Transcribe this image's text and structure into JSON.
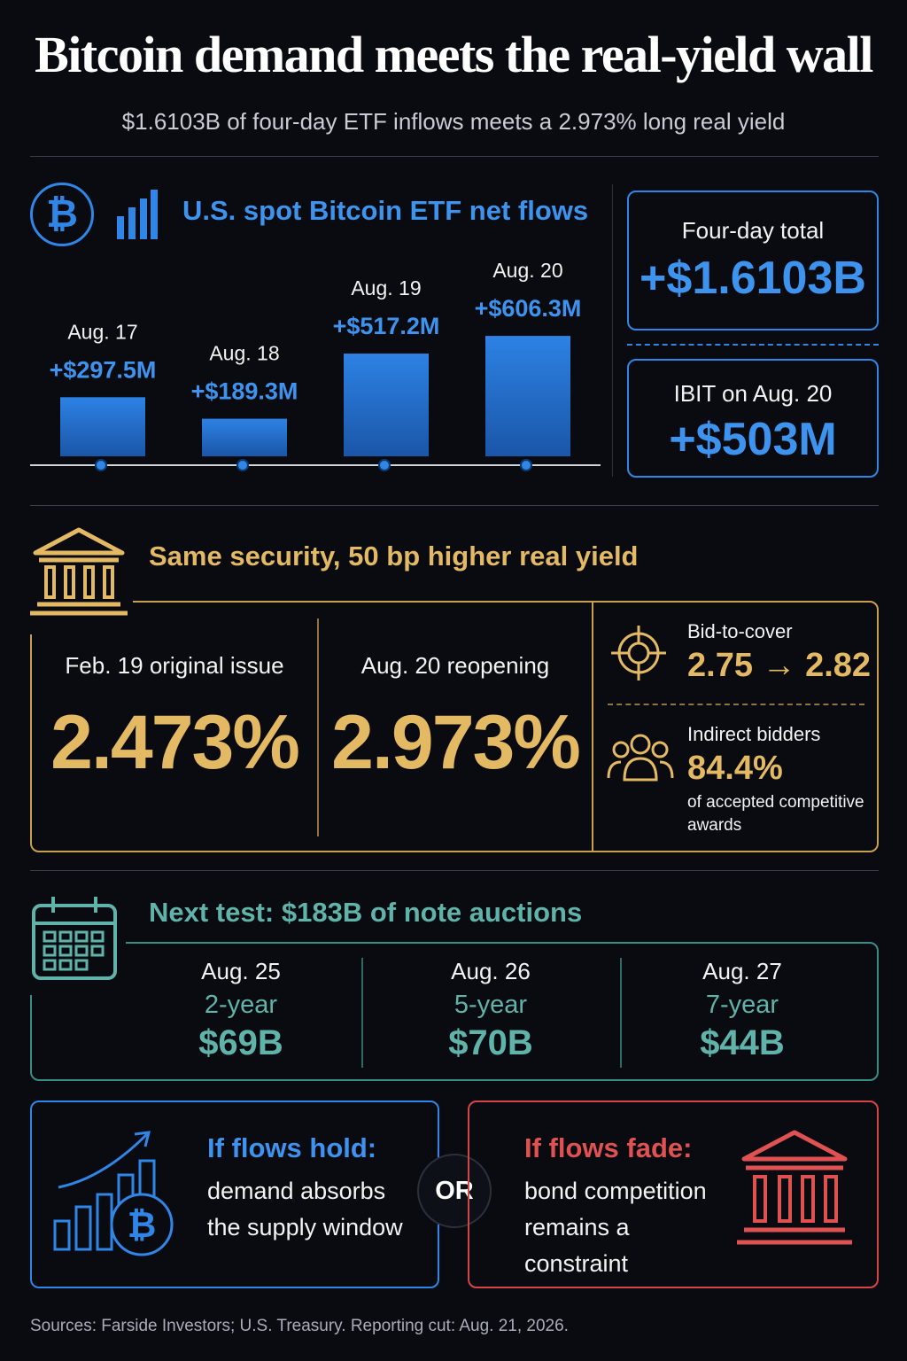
{
  "header": {
    "title": "Bitcoin demand meets the real-yield wall",
    "subtitle": "$1.6103B of four-day ETF inflows meets a 2.973% long real yield"
  },
  "etf": {
    "title": "U.S. spot Bitcoin ETF net flows",
    "icons": [
      "bitcoin-icon",
      "bar-chart-icon"
    ],
    "total_label": "Four-day total",
    "total_value": "+$1.6103B",
    "ibit_label": "IBIT on Aug. 20",
    "ibit_value": "+$503M"
  },
  "chart_data": {
    "type": "bar",
    "title": "U.S. spot Bitcoin ETF net flows",
    "categories": [
      "Aug. 17",
      "Aug. 18",
      "Aug. 19",
      "Aug. 20"
    ],
    "values": [
      297.5,
      189.3,
      517.2,
      606.3
    ],
    "value_labels": [
      "+$297.5M",
      "+$189.3M",
      "+$517.2M",
      "+$606.3M"
    ],
    "unit": "$M",
    "ylim": [
      0,
      650
    ],
    "grid": false,
    "color": "#2f86e6"
  },
  "yield": {
    "title": "Same security, 50 bp higher real yield",
    "original_label": "Feb. 19 original issue",
    "original_value": "2.473%",
    "reopen_label": "Aug. 20 reopening",
    "reopen_value": "2.973%",
    "btc_label": "Bid-to-cover",
    "btc_value": "2.75 → 2.82",
    "indirect_label": "Indirect bidders",
    "indirect_value": "84.4%",
    "indirect_note": "of accepted competitive awards",
    "icons": [
      "bank-icon",
      "target-icon",
      "people-icon"
    ]
  },
  "auctions": {
    "title": "Next test: $183B of note auctions",
    "icon": "calendar-icon",
    "items": [
      {
        "date": "Aug. 25",
        "tenor": "2-year",
        "size": "$69B"
      },
      {
        "date": "Aug. 26",
        "tenor": "5-year",
        "size": "$70B"
      },
      {
        "date": "Aug. 27",
        "tenor": "7-year",
        "size": "$44B"
      }
    ]
  },
  "scenarios": {
    "hold_title": "If flows hold:",
    "hold_text": "demand absorbs the supply window",
    "or_label": "OR",
    "fade_title": "If flows fade:",
    "fade_text": "bond competition remains a constraint"
  },
  "colors": {
    "background": "#090b11",
    "blue": "#2f86e6",
    "gold": "#e3b963",
    "teal": "#5fb3a8",
    "red": "#e05252"
  },
  "footer": {
    "sources": "Sources: Farside Investors; U.S. Treasury. Reporting cut: Aug. 21, 2026."
  }
}
